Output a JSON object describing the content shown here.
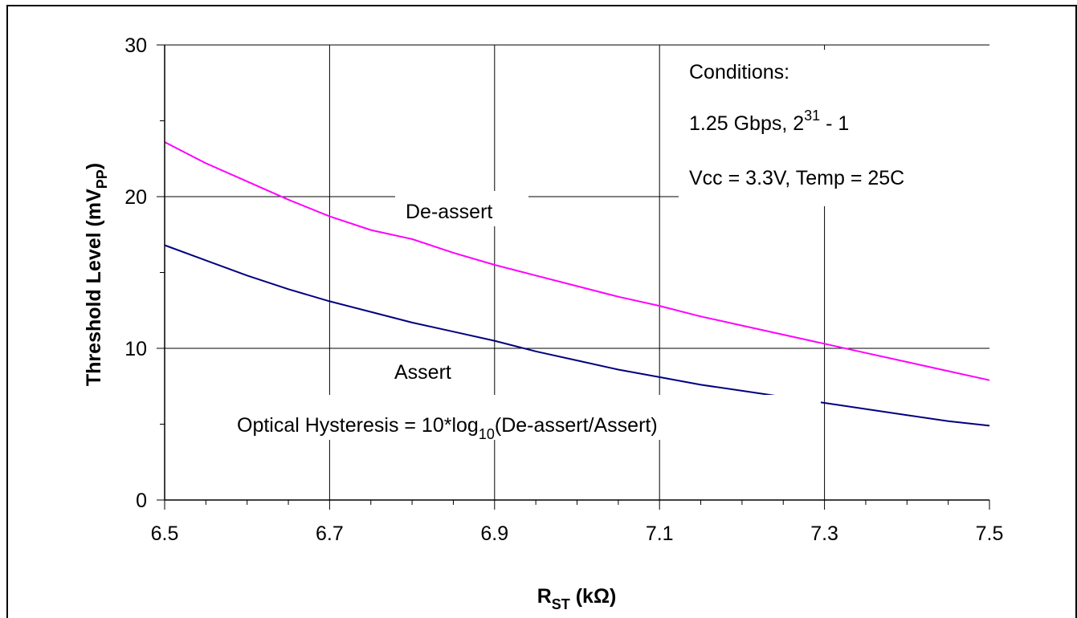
{
  "chart_data": {
    "type": "line",
    "xlabel": "R",
    "xlabel_sub": "ST",
    "xlabel_unit": " (kΩ)",
    "ylabel": "Threshold Level (mV",
    "ylabel_sub": "PP",
    "ylabel_end": ")",
    "xlim": [
      6.5,
      7.5
    ],
    "ylim": [
      0,
      30
    ],
    "x_ticks": [
      "6.5",
      "6.7",
      "6.9",
      "7.1",
      "7.3",
      "7.5"
    ],
    "y_ticks": [
      "0",
      "10",
      "20",
      "30"
    ],
    "grid": true,
    "series": [
      {
        "name": "De-assert",
        "color": "#ff00ff",
        "x": [
          6.5,
          6.55,
          6.6,
          6.65,
          6.7,
          6.75,
          6.8,
          6.85,
          6.9,
          6.95,
          7.0,
          7.05,
          7.1,
          7.15,
          7.2,
          7.25,
          7.3,
          7.35,
          7.4,
          7.45,
          7.5
        ],
        "y": [
          23.6,
          22.2,
          21.0,
          19.8,
          18.7,
          17.8,
          17.2,
          16.3,
          15.5,
          14.8,
          14.1,
          13.4,
          12.8,
          12.1,
          11.5,
          10.9,
          10.3,
          9.7,
          9.1,
          8.5,
          7.9
        ]
      },
      {
        "name": "Assert",
        "color": "#000080",
        "x": [
          6.5,
          6.55,
          6.6,
          6.65,
          6.7,
          6.75,
          6.8,
          6.85,
          6.9,
          6.95,
          7.0,
          7.05,
          7.1,
          7.15,
          7.2,
          7.25,
          7.3,
          7.35,
          7.4,
          7.45,
          7.5
        ],
        "y": [
          16.8,
          15.8,
          14.8,
          13.9,
          13.1,
          12.4,
          11.7,
          11.1,
          10.5,
          9.8,
          9.2,
          8.6,
          8.1,
          7.6,
          7.2,
          6.8,
          6.4,
          6.0,
          5.6,
          5.2,
          4.9
        ]
      }
    ],
    "annotations": {
      "conditions_title": "Conditions:",
      "conditions_rate": "1.25 Gbps, 2",
      "conditions_exp": "31",
      "conditions_rate_end": " - 1",
      "conditions_env": "Vcc = 3.3V, Temp = 25C",
      "deassert_label": "De-assert",
      "assert_label": "Assert",
      "hysteresis_pre": "Optical Hysteresis  = 10*log",
      "hysteresis_sub": "10",
      "hysteresis_post": "(De-assert/Assert)"
    }
  }
}
